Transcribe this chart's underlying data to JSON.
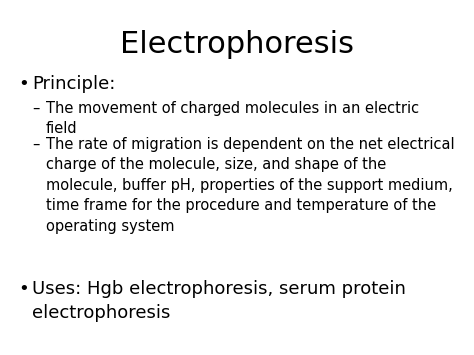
{
  "title": "Electrophoresis",
  "title_fontsize": 22,
  "background_color": "#ffffff",
  "text_color": "#000000",
  "bullet1": "Principle:",
  "bullet1_fontsize": 13,
  "sub1_label": "–",
  "sub1_text": "The movement of charged molecules in an electric\nfield",
  "sub2_label": "–",
  "sub2_text": "The rate of migration is dependent on the net electrical\ncharge of the molecule, size, and shape of the\nmolecule, buffer pH, properties of the support medium,\ntime frame for the procedure and temperature of the\noperating system",
  "sub_fontsize": 10.5,
  "bullet2": "Uses: Hgb electrophoresis, serum protein\nelectrophoresis",
  "bullet2_fontsize": 13
}
